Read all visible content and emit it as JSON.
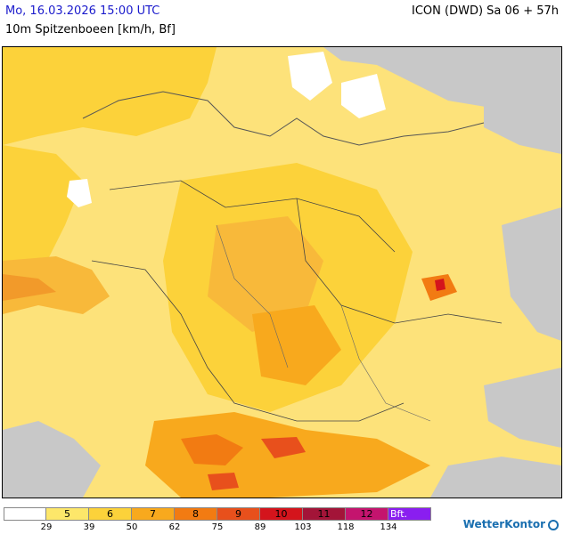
{
  "header": {
    "datetime": "Mo, 16.03.2026 15:00 UTC",
    "model": "ICON (DWD) Sa 06 + 57h",
    "parameter": "10m Spitzenboeen [km/h, Bf]"
  },
  "legend": {
    "items": [
      {
        "label": "",
        "color": "#ffffff"
      },
      {
        "label": "5",
        "color": "#fde76a"
      },
      {
        "label": "6",
        "color": "#fcd23a"
      },
      {
        "label": "7",
        "color": "#f8a91d"
      },
      {
        "label": "8",
        "color": "#f27b12"
      },
      {
        "label": "9",
        "color": "#e8501c"
      },
      {
        "label": "10",
        "color": "#d4141c"
      },
      {
        "label": "11",
        "color": "#a31438"
      },
      {
        "label": "12",
        "color": "#c4146e"
      },
      {
        "label": "Bft.",
        "color": "#8a1ef0"
      }
    ],
    "ticks": [
      "29",
      "39",
      "50",
      "62",
      "75",
      "89",
      "103",
      "118",
      "134"
    ]
  },
  "brand": {
    "name": "WetterKontor"
  }
}
